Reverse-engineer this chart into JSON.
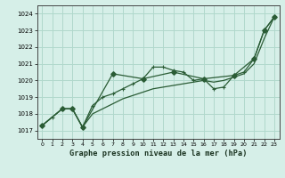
{
  "title": "Graphe pression niveau de la mer (hPa)",
  "bg_color": "#d6efe8",
  "grid_color": "#b0d8cc",
  "line_color": "#2a5c35",
  "xlim": [
    -0.5,
    23.5
  ],
  "ylim": [
    1016.5,
    1024.5
  ],
  "yticks": [
    1017,
    1018,
    1019,
    1020,
    1021,
    1022,
    1023,
    1024
  ],
  "xticks": [
    0,
    1,
    2,
    3,
    4,
    5,
    6,
    7,
    8,
    9,
    10,
    11,
    12,
    13,
    14,
    15,
    16,
    17,
    18,
    19,
    20,
    21,
    22,
    23
  ],
  "series1_x": [
    0,
    1,
    2,
    3,
    4,
    5,
    6,
    7,
    8,
    9,
    10,
    11,
    12,
    13,
    14,
    15,
    16,
    17,
    18,
    19,
    20,
    21,
    22,
    23
  ],
  "series1_y": [
    1017.3,
    1017.8,
    1018.3,
    1018.3,
    1017.2,
    1018.0,
    1018.3,
    1018.6,
    1018.9,
    1019.1,
    1019.3,
    1019.5,
    1019.6,
    1019.7,
    1019.8,
    1019.9,
    1020.0,
    1019.9,
    1020.0,
    1020.2,
    1020.4,
    1021.0,
    1022.5,
    1023.8
  ],
  "series2_x": [
    0,
    1,
    2,
    3,
    4,
    5,
    6,
    7,
    8,
    9,
    10,
    11,
    12,
    13,
    14,
    15,
    16,
    17,
    18,
    19,
    20,
    21,
    22,
    23
  ],
  "series2_y": [
    1017.3,
    1017.8,
    1018.3,
    1018.3,
    1017.2,
    1018.5,
    1019.0,
    1019.2,
    1019.5,
    1019.8,
    1020.1,
    1020.8,
    1020.8,
    1020.6,
    1020.5,
    1020.0,
    1020.1,
    1019.5,
    1019.6,
    1020.3,
    1020.5,
    1021.3,
    1023.0,
    1023.8
  ],
  "series3_x": [
    0,
    2,
    3,
    4,
    7,
    10,
    13,
    16,
    19,
    21,
    22,
    23
  ],
  "series3_y": [
    1017.3,
    1018.3,
    1018.3,
    1017.2,
    1020.4,
    1020.1,
    1020.5,
    1020.1,
    1020.3,
    1021.3,
    1023.0,
    1023.8
  ]
}
